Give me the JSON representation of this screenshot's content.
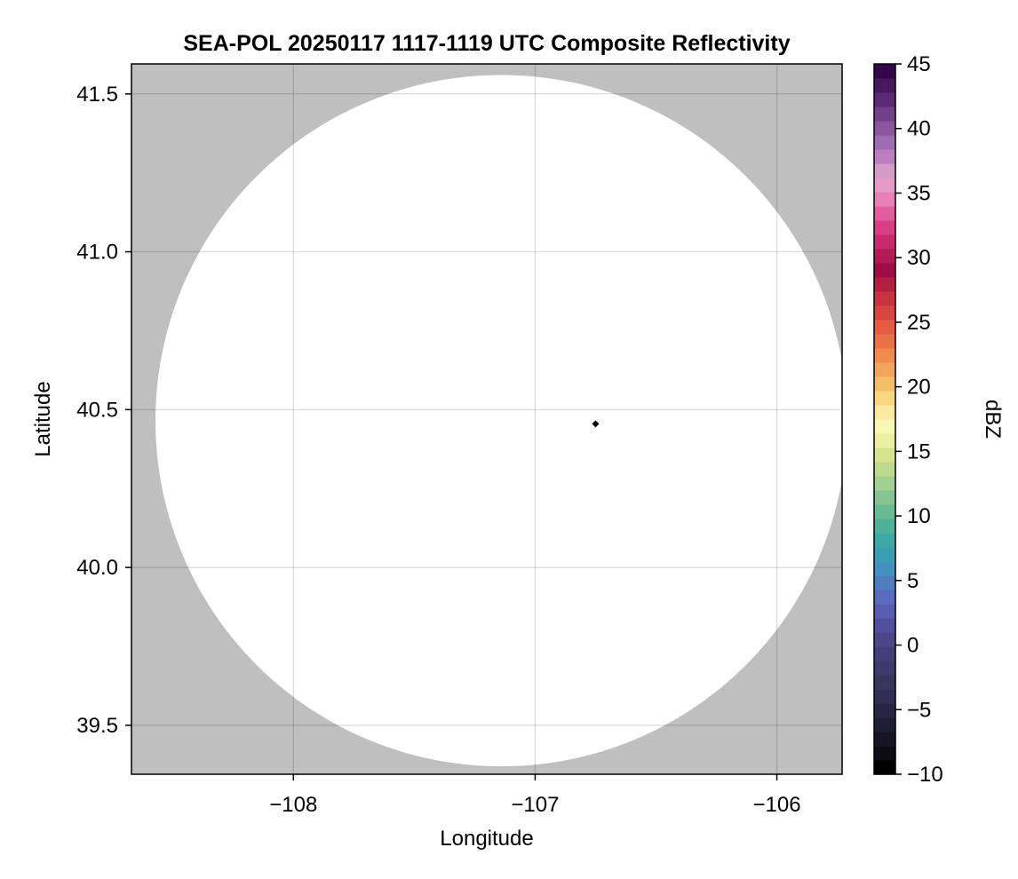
{
  "chart_data": {
    "type": "heatmap",
    "title": "SEA-POL 20250117 1117-1119 UTC Composite Reflectivity",
    "xlabel": "Longitude",
    "ylabel": "Latitude",
    "xlim": [
      -108.67,
      -105.73
    ],
    "ylim": [
      39.345,
      41.595
    ],
    "x_ticks": [
      -108,
      -107,
      -106
    ],
    "x_tick_labels": [
      "−108",
      "−107",
      "−106"
    ],
    "y_ticks": [
      39.5,
      40.0,
      40.5,
      41.0,
      41.5
    ],
    "y_tick_labels": [
      "39.5",
      "40.0",
      "40.5",
      "41.0",
      "41.5"
    ],
    "grid": true,
    "background_color": "#bfbfbf",
    "coverage": {
      "shape": "circle",
      "center_lon": -107.14,
      "center_lat": 40.465,
      "radius_lat_deg": 1.095,
      "fill": "#ffffff"
    },
    "radar_site": {
      "lon": -106.75,
      "lat": 40.455,
      "marker": "diamond",
      "color": "#000000"
    },
    "colorbar": {
      "label": "dBZ",
      "min": -10,
      "max": 45,
      "ticks": [
        -10,
        -5,
        0,
        5,
        10,
        15,
        20,
        25,
        30,
        35,
        40,
        45
      ],
      "tick_labels": [
        "−10",
        "−5",
        "0",
        "5",
        "10",
        "15",
        "20",
        "25",
        "30",
        "35",
        "40",
        "45"
      ],
      "colors": [
        "#000000",
        "#0d0b14",
        "#171525",
        "#1f1d34",
        "#272543",
        "#2f2d54",
        "#37365f",
        "#3d3b6b",
        "#433f7a",
        "#4a4889",
        "#524fa0",
        "#5a5db0",
        "#5a6bbe",
        "#4f7ebf",
        "#4491c0",
        "#3b9fb4",
        "#3ea8a4",
        "#4fb197",
        "#68bb92",
        "#86c494",
        "#a3cf93",
        "#bfda8e",
        "#d6e48f",
        "#eaf0a0",
        "#f9f7b4",
        "#fbe9a0",
        "#f9d67f",
        "#f5bf69",
        "#f2a55e",
        "#ef8b4f",
        "#ea7046",
        "#e45a42",
        "#d9453f",
        "#c83340",
        "#b21f42",
        "#9e0e44",
        "#b41a53",
        "#c92a6e",
        "#d93d86",
        "#e35c9e",
        "#e880b5",
        "#e69ac6",
        "#d29bc8",
        "#b97fc0",
        "#a06cb2",
        "#8b569f",
        "#74408a",
        "#5d2a76",
        "#48185f",
        "#35064d"
      ]
    }
  }
}
